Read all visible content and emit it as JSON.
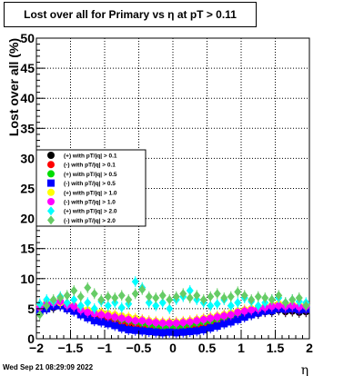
{
  "chart_data": {
    "type": "scatter",
    "title": "Lost over all for Primary vs   η at pT > 0.11",
    "xlabel": "η",
    "ylabel": "Lost over all (%)",
    "xlim": [
      -2,
      2
    ],
    "ylim": [
      0,
      50
    ],
    "x_ticks": [
      -2,
      -1.5,
      -1,
      -0.5,
      0,
      0.5,
      1,
      1.5,
      2
    ],
    "x_tick_labels": [
      "−2",
      "−1.5",
      "−1",
      "−0.5",
      "0",
      "0.5",
      "1",
      "1.5",
      "2"
    ],
    "y_ticks": [
      0,
      5,
      10,
      15,
      20,
      25,
      30,
      35,
      40,
      45,
      50
    ],
    "y_tick_labels": [
      "0",
      "5",
      "10",
      "15",
      "20",
      "25",
      "30",
      "35",
      "40",
      "45",
      "50"
    ],
    "grid": true,
    "legend_position": "left-middle",
    "series": [
      {
        "name": "(+) with pT/|q| > 0.1",
        "color": "#000000",
        "marker": "circle",
        "x": [
          -1.95,
          -1.85,
          -1.75,
          -1.65,
          -1.55,
          -1.45,
          -1.35,
          -1.25,
          -1.15,
          -1.05,
          -0.95,
          -0.85,
          -0.75,
          -0.65,
          -0.55,
          -0.45,
          -0.35,
          -0.25,
          -0.15,
          -0.05,
          0.05,
          0.15,
          0.25,
          0.35,
          0.45,
          0.55,
          0.65,
          0.75,
          0.85,
          0.95,
          1.05,
          1.15,
          1.25,
          1.35,
          1.45,
          1.55,
          1.65,
          1.75,
          1.85,
          1.95
        ],
        "y": [
          4.5,
          5.0,
          5.2,
          5.5,
          5.0,
          4.8,
          4.2,
          3.8,
          3.5,
          3.3,
          3.0,
          2.8,
          2.5,
          2.3,
          2.2,
          2.0,
          1.8,
          1.7,
          1.6,
          1.5,
          1.6,
          1.7,
          1.8,
          2.0,
          2.2,
          2.5,
          2.8,
          3.0,
          3.3,
          3.6,
          3.8,
          4.0,
          4.2,
          4.5,
          4.5,
          4.8,
          4.5,
          4.6,
          4.4,
          4.5
        ]
      },
      {
        "name": "(-) with pT/|q| > 0.1",
        "color": "#ff0000",
        "marker": "circle",
        "x": [
          -1.95,
          -1.85,
          -1.75,
          -1.65,
          -1.55,
          -1.45,
          -1.35,
          -1.25,
          -1.15,
          -1.05,
          -0.95,
          -0.85,
          -0.75,
          -0.65,
          -0.55,
          -0.45,
          -0.35,
          -0.25,
          -0.15,
          -0.05,
          0.05,
          0.15,
          0.25,
          0.35,
          0.45,
          0.55,
          0.65,
          0.75,
          0.85,
          0.95,
          1.05,
          1.15,
          1.25,
          1.35,
          1.45,
          1.55,
          1.65,
          1.75,
          1.85,
          1.95
        ],
        "y": [
          4.8,
          5.2,
          5.5,
          5.8,
          5.2,
          5.0,
          4.5,
          4.0,
          3.8,
          3.5,
          3.3,
          3.0,
          2.8,
          2.6,
          2.4,
          2.2,
          2.0,
          1.9,
          1.8,
          1.7,
          1.8,
          1.9,
          2.0,
          2.2,
          2.4,
          2.7,
          3.0,
          3.2,
          3.5,
          3.8,
          4.0,
          4.2,
          4.4,
          4.7,
          4.8,
          5.0,
          4.8,
          4.9,
          4.7,
          4.8
        ]
      },
      {
        "name": "(+) with pT/|q| > 0.5",
        "color": "#00dd00",
        "marker": "circle",
        "x": [
          -1.95,
          -1.85,
          -1.75,
          -1.65,
          -1.55,
          -1.45,
          -1.35,
          -1.25,
          -1.15,
          -1.05,
          -0.95,
          -0.85,
          -0.75,
          -0.65,
          -0.55,
          -0.45,
          -0.35,
          -0.25,
          -0.15,
          -0.05,
          0.05,
          0.15,
          0.25,
          0.35,
          0.45,
          0.55,
          0.65,
          0.75,
          0.85,
          0.95,
          1.05,
          1.15,
          1.25,
          1.35,
          1.45,
          1.55,
          1.65,
          1.75,
          1.85,
          1.95
        ],
        "y": [
          5.0,
          5.5,
          6.0,
          5.8,
          5.5,
          5.2,
          4.8,
          4.5,
          4.2,
          4.0,
          3.8,
          3.5,
          3.2,
          3.0,
          2.8,
          2.6,
          2.4,
          2.2,
          2.1,
          2.0,
          2.1,
          2.2,
          2.4,
          2.6,
          2.8,
          3.0,
          3.3,
          3.6,
          3.8,
          4.0,
          4.3,
          4.5,
          4.8,
          5.0,
          5.2,
          5.3,
          5.2,
          5.3,
          5.0,
          5.1
        ]
      },
      {
        "name": "(-) with pT/|q| > 0.5",
        "color": "#0000ff",
        "marker": "square",
        "x": [
          -1.95,
          -1.85,
          -1.75,
          -1.65,
          -1.55,
          -1.45,
          -1.35,
          -1.25,
          -1.15,
          -1.05,
          -0.95,
          -0.85,
          -0.75,
          -0.65,
          -0.55,
          -0.45,
          -0.35,
          -0.25,
          -0.15,
          -0.05,
          0.05,
          0.15,
          0.25,
          0.35,
          0.45,
          0.55,
          0.65,
          0.75,
          0.85,
          0.95,
          1.05,
          1.15,
          1.25,
          1.35,
          1.45,
          1.55,
          1.65,
          1.75,
          1.85,
          1.95
        ],
        "y": [
          4.6,
          5.0,
          5.4,
          5.5,
          5.0,
          4.6,
          4.0,
          3.5,
          3.0,
          2.8,
          2.5,
          2.2,
          1.8,
          1.5,
          1.4,
          1.3,
          1.2,
          1.1,
          1.0,
          1.1,
          1.0,
          1.1,
          1.2,
          1.3,
          1.5,
          1.8,
          2.1,
          2.5,
          2.8,
          3.2,
          3.6,
          4.0,
          4.3,
          4.6,
          4.7,
          5.0,
          4.9,
          5.0,
          4.8,
          4.9
        ]
      },
      {
        "name": "(+) with pT/|q| > 1.0",
        "color": "#ffff00",
        "marker": "circle",
        "x": [
          -1.95,
          -1.85,
          -1.75,
          -1.65,
          -1.55,
          -1.45,
          -1.35,
          -1.25,
          -1.15,
          -1.05,
          -0.95,
          -0.85,
          -0.75,
          -0.65,
          -0.55,
          -0.45,
          -0.35,
          -0.25,
          -0.15,
          -0.05,
          0.05,
          0.15,
          0.25,
          0.35,
          0.45,
          0.55,
          0.65,
          0.75,
          0.85,
          0.95,
          1.05,
          1.15,
          1.25,
          1.35,
          1.45,
          1.55,
          1.65,
          1.75,
          1.85,
          1.95
        ],
        "y": [
          5.5,
          6.0,
          6.2,
          6.0,
          5.8,
          5.5,
          5.0,
          4.8,
          4.6,
          4.4,
          4.2,
          4.0,
          3.8,
          3.6,
          3.4,
          3.2,
          3.0,
          2.9,
          2.8,
          2.8,
          2.8,
          2.9,
          3.0,
          3.2,
          3.4,
          3.6,
          3.8,
          4.0,
          4.3,
          4.6,
          4.8,
          5.0,
          5.2,
          5.4,
          5.6,
          5.8,
          5.6,
          5.7,
          5.5,
          5.6
        ]
      },
      {
        "name": "(-) with pT/|q| > 1.0",
        "color": "#ff00ff",
        "marker": "circle",
        "x": [
          -1.95,
          -1.85,
          -1.75,
          -1.65,
          -1.55,
          -1.45,
          -1.35,
          -1.25,
          -1.15,
          -1.05,
          -0.95,
          -0.85,
          -0.75,
          -0.65,
          -0.55,
          -0.45,
          -0.35,
          -0.25,
          -0.15,
          -0.05,
          0.05,
          0.15,
          0.25,
          0.35,
          0.45,
          0.55,
          0.65,
          0.75,
          0.85,
          0.95,
          1.05,
          1.15,
          1.25,
          1.35,
          1.45,
          1.55,
          1.65,
          1.75,
          1.85,
          1.95
        ],
        "y": [
          5.2,
          5.8,
          6.0,
          6.2,
          5.6,
          5.4,
          4.8,
          4.4,
          4.2,
          4.0,
          3.8,
          3.6,
          3.4,
          3.2,
          3.0,
          3.0,
          2.8,
          2.7,
          2.6,
          2.6,
          2.6,
          2.7,
          2.8,
          3.0,
          3.2,
          3.4,
          3.6,
          3.8,
          4.0,
          4.4,
          4.6,
          4.8,
          5.0,
          5.2,
          5.4,
          5.5,
          5.4,
          5.5,
          5.3,
          5.4
        ]
      },
      {
        "name": "(+) with pT/|q| > 2.0",
        "color": "#00ffff",
        "marker": "diamond",
        "x": [
          -1.95,
          -1.85,
          -1.75,
          -1.65,
          -1.55,
          -1.45,
          -1.35,
          -1.25,
          -1.15,
          -1.05,
          -0.95,
          -0.85,
          -0.75,
          -0.65,
          -0.55,
          -0.45,
          -0.35,
          -0.25,
          -0.15,
          -0.05,
          0.05,
          0.15,
          0.25,
          0.35,
          0.45,
          0.55,
          0.65,
          0.75,
          0.85,
          0.95,
          1.05,
          1.15,
          1.25,
          1.35,
          1.45,
          1.55,
          1.65,
          1.75,
          1.85,
          1.95
        ],
        "y": [
          5.8,
          6.5,
          6.2,
          7.0,
          6.0,
          6.5,
          5.5,
          6.0,
          5.0,
          6.2,
          5.5,
          6.0,
          5.2,
          5.8,
          9.5,
          8.5,
          6.0,
          5.5,
          6.0,
          5.0,
          6.5,
          7.0,
          8.0,
          6.5,
          6.0,
          5.5,
          5.8,
          6.5,
          5.5,
          6.0,
          6.8,
          6.2,
          5.5,
          6.0,
          6.5,
          6.8,
          6.0,
          6.5,
          6.2,
          6.0
        ]
      },
      {
        "name": "(-) with pT/|q| > 2.0",
        "color": "#66cc66",
        "marker": "diamond",
        "x": [
          -1.95,
          -1.85,
          -1.75,
          -1.65,
          -1.55,
          -1.45,
          -1.35,
          -1.25,
          -1.15,
          -1.05,
          -0.95,
          -0.85,
          -0.75,
          -0.65,
          -0.55,
          -0.45,
          -0.35,
          -0.25,
          -0.15,
          -0.05,
          0.05,
          0.15,
          0.25,
          0.35,
          0.45,
          0.55,
          0.65,
          0.75,
          0.85,
          0.95,
          1.05,
          1.15,
          1.25,
          1.35,
          1.45,
          1.55,
          1.65,
          1.75,
          1.85,
          1.95
        ],
        "y": [
          4.0,
          5.5,
          6.5,
          6.8,
          7.2,
          8.0,
          7.0,
          8.5,
          7.5,
          6.5,
          7.0,
          6.8,
          7.2,
          6.5,
          7.5,
          8.2,
          7.0,
          6.8,
          7.2,
          6.5,
          7.0,
          7.5,
          6.8,
          7.2,
          6.5,
          7.0,
          7.5,
          6.8,
          7.0,
          7.8,
          7.2,
          6.5,
          7.0,
          6.8,
          6.5,
          7.2,
          6.0,
          6.5,
          6.8,
          5.5
        ]
      }
    ]
  },
  "footer": {
    "date_stamp": "Wed Sep 21 08:29:09 2022"
  }
}
